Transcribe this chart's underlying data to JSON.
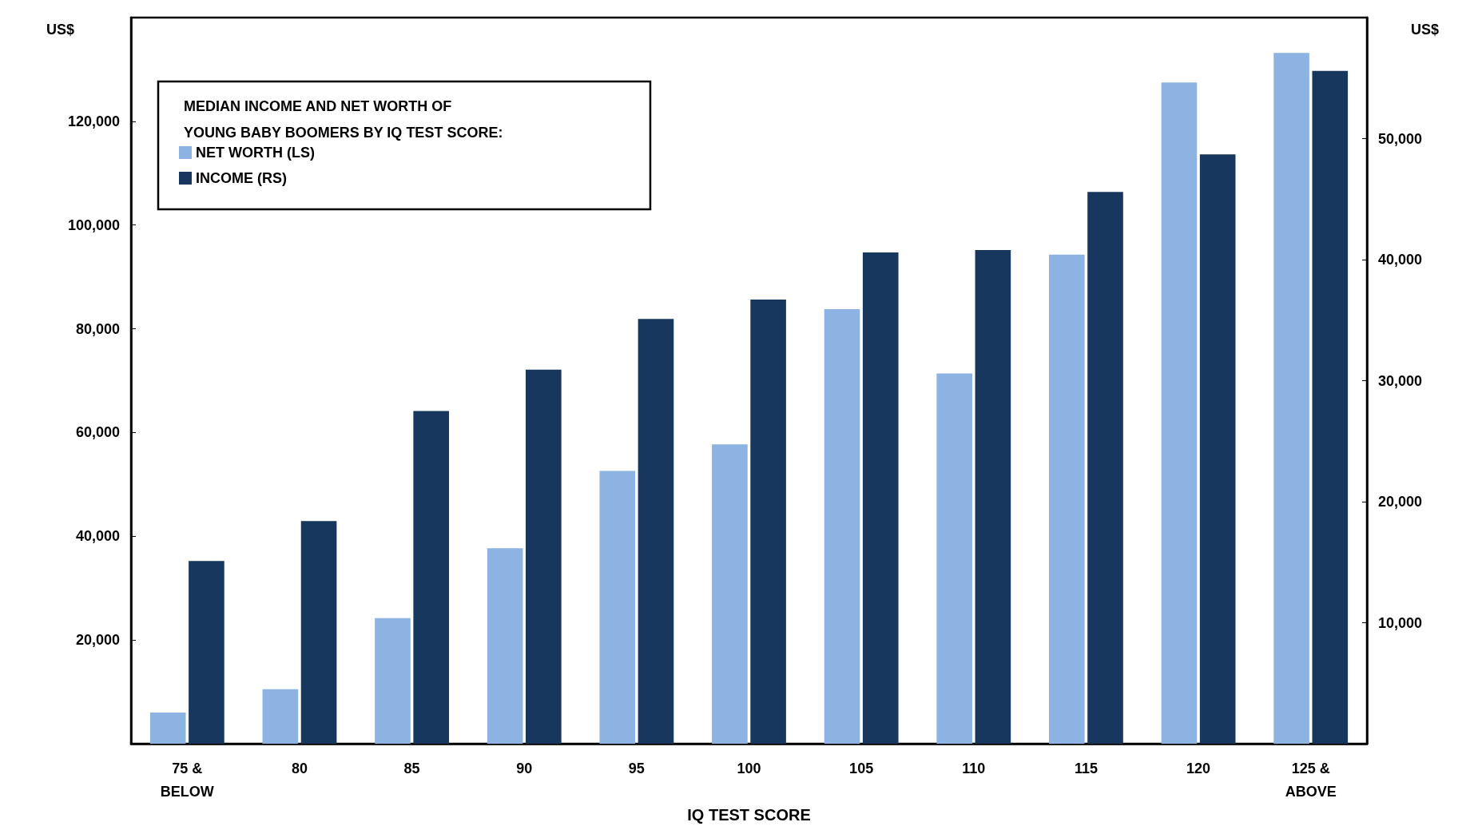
{
  "chart_data": {
    "type": "bar",
    "legend_title": "MEDIAN INCOME AND NET WORTH OF\nYOUNG BABY BOOMERS BY IQ TEST SCORE:",
    "xlabel": "IQ TEST SCORE",
    "ylabel": "US$",
    "y2label": "US$",
    "categories": [
      "75 &\nBELOW",
      "80",
      "85",
      "90",
      "95",
      "100",
      "105",
      "110",
      "115",
      "120",
      "125 &\nABOVE"
    ],
    "series": [
      {
        "name": "NET WORTH (LS)",
        "color": "#8db3e2",
        "values": [
          6000,
          10500,
          24200,
          37700,
          52600,
          57700,
          83800,
          71400,
          94300,
          127500,
          133200
        ]
      },
      {
        "name": "INCOME (RS)",
        "color": "#17375e",
        "axis": "y2",
        "values": [
          15100,
          18400,
          27500,
          30900,
          35100,
          36700,
          40600,
          40800,
          45600,
          48700,
          55600
        ]
      }
    ],
    "ylim": [
      0,
      140000
    ],
    "yticks": [
      {
        "value": 20000,
        "label": "20,000"
      },
      {
        "value": 40000,
        "label": "40,000"
      },
      {
        "value": 60000,
        "label": "60,000"
      },
      {
        "value": 80000,
        "label": "80,000"
      },
      {
        "value": 100000,
        "label": "100,000"
      },
      {
        "value": 120000,
        "label": "120,000"
      }
    ],
    "y2lim": [
      0,
      60000
    ],
    "y2ticks": [
      {
        "value": 10000,
        "label": "10,000"
      },
      {
        "value": 20000,
        "label": "20,000"
      },
      {
        "value": 30000,
        "label": "30,000"
      },
      {
        "value": 40000,
        "label": "40,000"
      },
      {
        "value": 50000,
        "label": "50,000"
      }
    ],
    "legend": "top left",
    "grid": false
  }
}
